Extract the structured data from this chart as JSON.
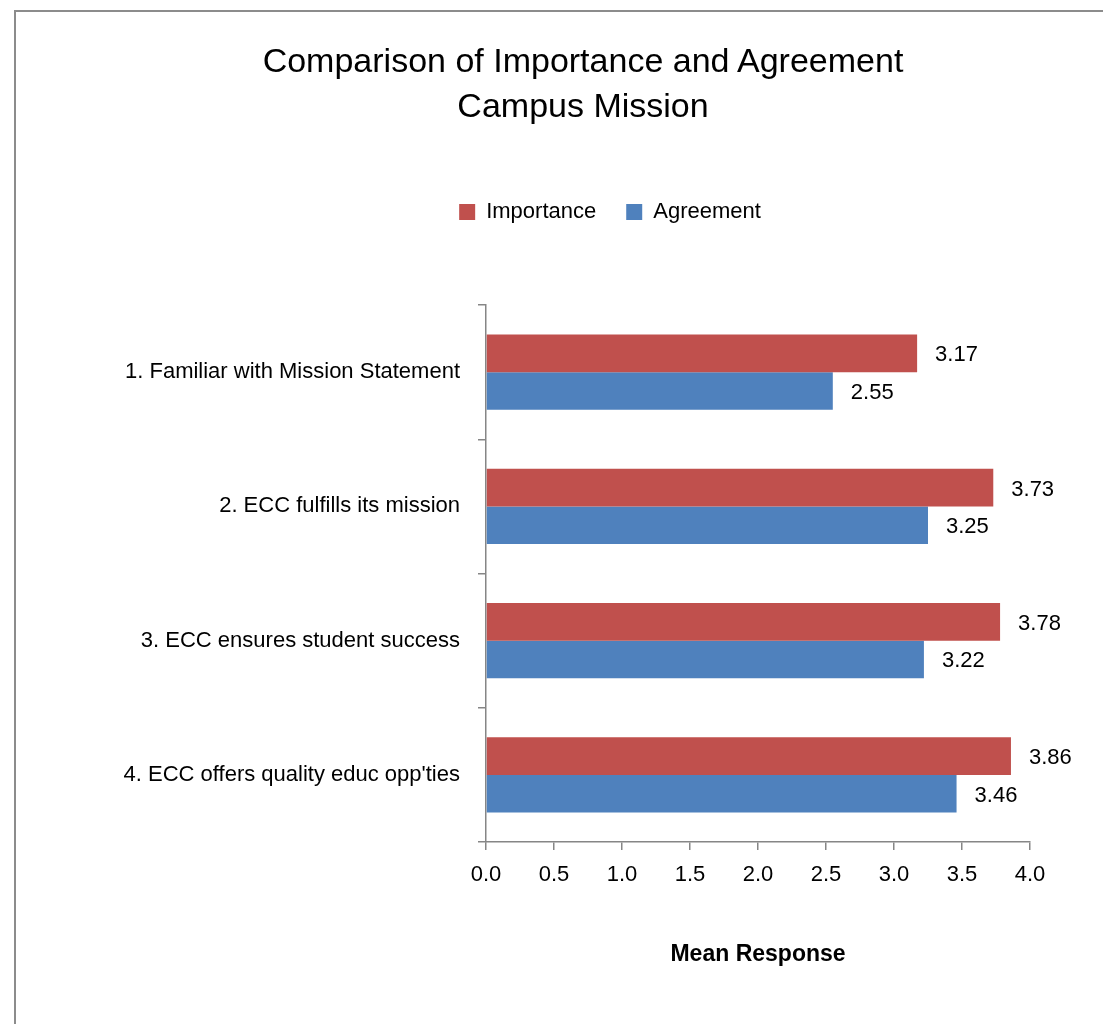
{
  "chart_data": {
    "type": "bar",
    "orientation": "horizontal",
    "title": "Comparison of Importance and Agreement\nCampus Mission",
    "xlabel": "Mean Response",
    "categories": [
      "1. Familiar with Mission Statement",
      "2. ECC fulfills its mission",
      "3. ECC ensures student success",
      "4. ECC offers quality educ opp'ties"
    ],
    "series": [
      {
        "name": "Importance",
        "color": "#c0504d",
        "values": [
          3.17,
          3.73,
          3.78,
          3.86
        ]
      },
      {
        "name": "Agreement",
        "color": "#4f81bd",
        "values": [
          2.55,
          3.25,
          3.22,
          3.46
        ]
      }
    ],
    "xlim": [
      0,
      4
    ],
    "xticks": [
      {
        "value": 0,
        "label": "0.0"
      },
      0.5,
      {
        "value": 1,
        "label": "1.0"
      },
      1.5,
      {
        "value": 2,
        "label": "2.0"
      },
      2.5,
      {
        "value": 3,
        "label": "3.0"
      },
      3.5,
      {
        "value": 4,
        "label": "4.0"
      }
    ],
    "grid": false,
    "legend": "top",
    "data_labels": true
  }
}
